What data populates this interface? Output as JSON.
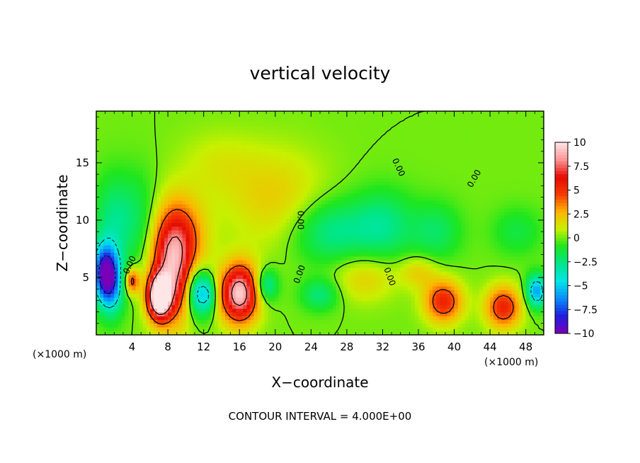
{
  "chart_data": {
    "type": "heatmap",
    "title": "vertical velocity",
    "xlabel": "X−coordinate",
    "ylabel": "Z−coordinate",
    "x_unit_label": "(×1000 m)",
    "z_unit_label": "(×1000 m)",
    "xlim": [
      0,
      50
    ],
    "ylim": [
      0,
      19.5
    ],
    "x_ticks": [
      "4",
      "8",
      "12",
      "16",
      "20",
      "24",
      "28",
      "32",
      "36",
      "40",
      "44",
      "48"
    ],
    "x_tick_values": [
      4,
      8,
      12,
      16,
      20,
      24,
      28,
      32,
      36,
      40,
      44,
      48
    ],
    "y_ticks": [
      "5",
      "10",
      "15"
    ],
    "y_tick_values": [
      5,
      10,
      15
    ],
    "colorbar": {
      "labels": [
        "10",
        "7.5",
        "5",
        "2.5",
        "0",
        "−2.5",
        "−5",
        "−7.5",
        "−10"
      ],
      "values": [
        10,
        7.5,
        5,
        2.5,
        0,
        -2.5,
        -5,
        -7.5,
        -10
      ],
      "range": [
        -10,
        10
      ],
      "colors": [
        "#7a00b8",
        "#1e1edc",
        "#0a8cff",
        "#00e6e6",
        "#00e68c",
        "#1ee61e",
        "#c8f000",
        "#ffb400",
        "#f53c00",
        "#e60a00",
        "#ff9696",
        "#ffe6e6"
      ]
    },
    "contour_interval_label": "CONTOUR INTERVAL = 4.000E+00",
    "contour_labels": [
      {
        "text": "0.00",
        "x": 4,
        "z": 6.0,
        "rot": -65
      },
      {
        "text": "0.00",
        "x": 22.5,
        "z": 10.0,
        "rot": 90
      },
      {
        "text": "0.00",
        "x": 23.0,
        "z": 5.2,
        "rot": -70
      },
      {
        "text": "0.00",
        "x": 33.5,
        "z": 14.5,
        "rot": 65
      },
      {
        "text": "0.00",
        "x": 32.5,
        "z": 5.0,
        "rot": 70
      },
      {
        "text": "0.00",
        "x": 42.5,
        "z": 13.5,
        "rot": -60
      }
    ],
    "field_features": [
      {
        "x": 7.0,
        "z": 3.3,
        "amp": 11.0,
        "sx": 0.9,
        "sz": 1.3
      },
      {
        "x": 8.4,
        "z": 5.5,
        "amp": 7.0,
        "sx": 1.6,
        "sz": 3.2
      },
      {
        "x": 9.5,
        "z": 8.5,
        "amp": 4.0,
        "sx": 2.0,
        "sz": 2.5
      },
      {
        "x": 16.0,
        "z": 3.6,
        "amp": 9.5,
        "sx": 1.5,
        "sz": 1.8
      },
      {
        "x": 38.8,
        "z": 2.9,
        "amp": 5.5,
        "sx": 1.5,
        "sz": 1.3
      },
      {
        "x": 45.5,
        "z": 2.4,
        "amp": 5.5,
        "sx": 1.4,
        "sz": 1.3
      },
      {
        "x": 4.0,
        "z": 4.7,
        "amp": 5.0,
        "sx": 0.6,
        "sz": 0.8
      },
      {
        "x": 1.0,
        "z": 5.5,
        "amp": -8.5,
        "sx": 1.0,
        "sz": 1.7
      },
      {
        "x": 1.7,
        "z": 4.0,
        "amp": -4.0,
        "sx": 1.0,
        "sz": 1.8
      },
      {
        "x": 11.3,
        "z": 3.7,
        "amp": -5.5,
        "sx": 0.8,
        "sz": 1.4
      },
      {
        "x": 12.6,
        "z": 3.5,
        "amp": -3.5,
        "sx": 0.6,
        "sz": 1.2
      },
      {
        "x": 19.0,
        "z": 4.3,
        "amp": -3.5,
        "sx": 0.9,
        "sz": 1.0
      },
      {
        "x": 49.2,
        "z": 3.8,
        "amp": -6.0,
        "sx": 0.8,
        "sz": 1.0
      },
      {
        "x": 2.0,
        "z": 10.0,
        "amp": -2.5,
        "sx": 1.6,
        "sz": 2.8
      },
      {
        "x": 5.0,
        "z": 10.0,
        "amp": -1.5,
        "sx": 1.5,
        "sz": 3.0
      },
      {
        "x": 26.0,
        "z": 9.0,
        "amp": -2.8,
        "sx": 3.0,
        "sz": 2.0
      },
      {
        "x": 32.0,
        "z": 9.5,
        "amp": -2.6,
        "sx": 2.5,
        "sz": 2.2
      },
      {
        "x": 38.0,
        "z": 9.0,
        "amp": -2.0,
        "sx": 2.0,
        "sz": 1.8
      },
      {
        "x": 25.0,
        "z": 3.5,
        "amp": -2.5,
        "sx": 1.5,
        "sz": 1.0
      },
      {
        "x": 47.0,
        "z": 9.0,
        "amp": -1.5,
        "sx": 2.0,
        "sz": 1.5
      },
      {
        "x": 20.0,
        "z": 12.0,
        "amp": 2.0,
        "sx": 4.0,
        "sz": 3.0
      },
      {
        "x": 30.0,
        "z": 5.0,
        "amp": 2.0,
        "sx": 2.5,
        "sz": 1.5
      },
      {
        "x": 36.0,
        "z": 5.5,
        "amp": 2.0,
        "sx": 1.5,
        "sz": 1.0
      },
      {
        "x": 13.5,
        "z": 15.0,
        "amp": 1.0,
        "sx": 3.0,
        "sz": 2.0
      }
    ]
  }
}
